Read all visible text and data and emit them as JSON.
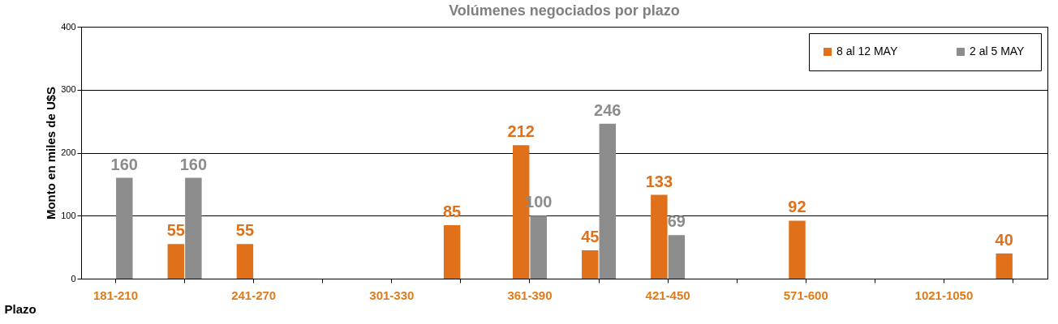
{
  "chart_data": {
    "type": "bar",
    "title": "Volúmenes negociados por plazo",
    "xlabel": "Plazo",
    "ylabel": "Monto en  miles de U$S",
    "categories": [
      "181-210",
      null,
      "241-270",
      null,
      "301-330",
      null,
      "361-390",
      null,
      "421-450",
      null,
      "571-600",
      null,
      "1021-1050",
      null
    ],
    "series": [
      {
        "name": "8 al 12 MAY",
        "color": "#e0701a",
        "values": [
          null,
          55,
          55,
          null,
          null,
          85,
          212,
          45,
          133,
          null,
          92,
          null,
          null,
          40
        ]
      },
      {
        "name": "2  al 5 MAY",
        "color": "#8c8c8c",
        "values": [
          160,
          160,
          null,
          null,
          null,
          null,
          100,
          246,
          69,
          null,
          null,
          null,
          null,
          null
        ]
      }
    ],
    "ylim": [
      0,
      400
    ],
    "yticks": [
      0,
      100,
      200,
      300,
      400
    ],
    "grid": "y",
    "legend": "top right",
    "data_labels": true
  }
}
